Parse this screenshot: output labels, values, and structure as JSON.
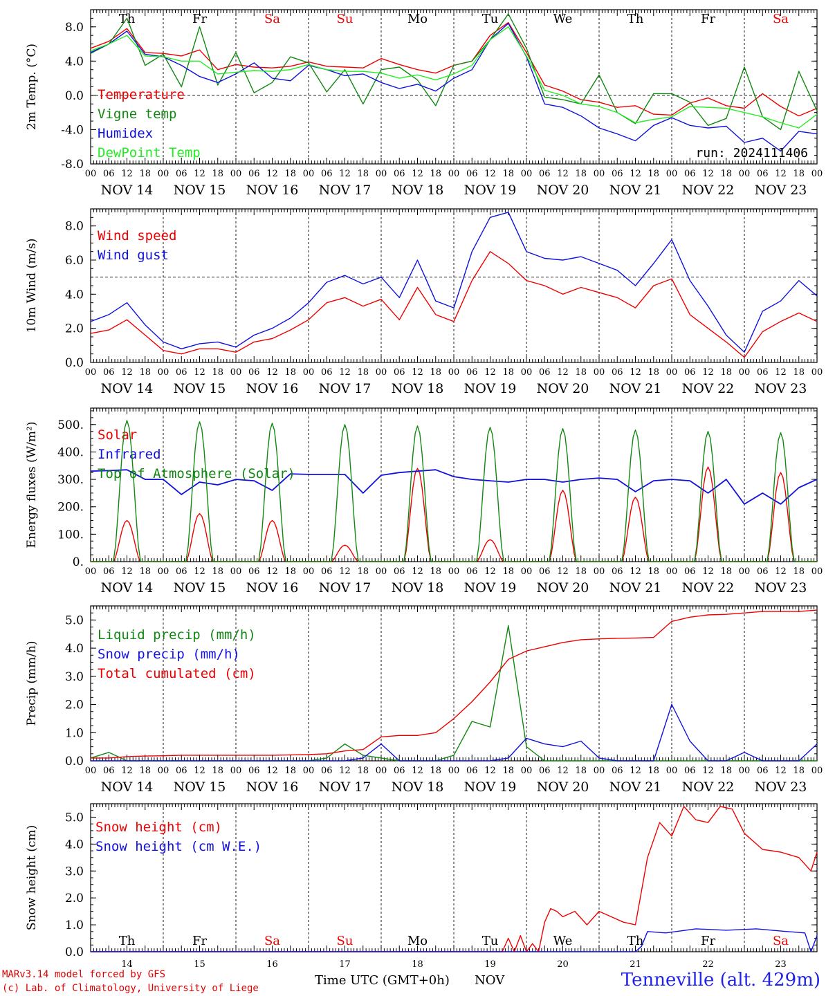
{
  "run_label": "run: 2024111406",
  "days": [
    {
      "weekday": "Th",
      "weekend": false,
      "date": "NOV 14",
      "num": "14"
    },
    {
      "weekday": "Fr",
      "weekend": false,
      "date": "NOV 15",
      "num": "15"
    },
    {
      "weekday": "Sa",
      "weekend": true,
      "date": "NOV 16",
      "num": "16"
    },
    {
      "weekday": "Su",
      "weekend": true,
      "date": "NOV 17",
      "num": "17"
    },
    {
      "weekday": "Mo",
      "weekend": false,
      "date": "NOV 18",
      "num": "18"
    },
    {
      "weekday": "Tu",
      "weekend": false,
      "date": "NOV 19",
      "num": "19"
    },
    {
      "weekday": "We",
      "weekend": false,
      "date": "NOV 20",
      "num": "20"
    },
    {
      "weekday": "Th",
      "weekend": false,
      "date": "NOV 21",
      "num": "21"
    },
    {
      "weekday": "Fr",
      "weekend": false,
      "date": "NOV 22",
      "num": "22"
    },
    {
      "weekday": "Sa",
      "weekend": true,
      "date": "NOV 23",
      "num": "23"
    }
  ],
  "hour_ticks": [
    "00",
    "06",
    "12",
    "18"
  ],
  "footer": {
    "model_line": "MARv3.14 model forced by GFS",
    "lab_line": "(c) Lab. of Climatology, University of Liege",
    "station": "Tenneville (alt. 429m)",
    "time_axis_label": "Time UTC (GMT+0h)",
    "month_label": "NOV"
  },
  "colors": {
    "red": "#ee0000",
    "green": "#118811",
    "blue": "#1111dd",
    "lightgreen": "#22ee22",
    "weekend": "#ee0000"
  },
  "chart_data": [
    {
      "type": "line",
      "ylabel": "2m Temp. (°C)",
      "ylim": [
        -8,
        10
      ],
      "yticks": [
        8,
        4,
        0,
        -4,
        -8
      ],
      "ytick_labels": [
        "8.0",
        "4.0",
        "0.0",
        "-4.0",
        "-8.0"
      ],
      "reference_line": 0,
      "x_hours": [
        0,
        6,
        12,
        18,
        24,
        30,
        36,
        42,
        48,
        54,
        60,
        66,
        72,
        78,
        84,
        90,
        96,
        102,
        108,
        114,
        120,
        126,
        132,
        138,
        144,
        150,
        156,
        162,
        168,
        174,
        180,
        186,
        192,
        198,
        204,
        210,
        216,
        222,
        228,
        234,
        240
      ],
      "series": [
        {
          "name": "Temperature",
          "color": "red",
          "values": [
            5.5,
            6.3,
            7.8,
            5.0,
            4.9,
            4.6,
            5.3,
            3.0,
            3.6,
            3.3,
            3.2,
            3.4,
            3.9,
            3.4,
            3.3,
            3.2,
            4.3,
            3.6,
            3.0,
            2.6,
            3.5,
            4.0,
            7.0,
            8.5,
            5.0,
            1.2,
            0.5,
            -0.5,
            -0.8,
            -1.4,
            -1.2,
            -2.2,
            -2.3,
            -0.9,
            -0.3,
            -1.2,
            -1.5,
            0.2,
            -1.3,
            -2.4,
            -1.5
          ]
        },
        {
          "name": "Vigne temp",
          "color": "green",
          "values": [
            4.9,
            6.0,
            9.0,
            3.5,
            4.8,
            1.0,
            8.0,
            1.2,
            5.0,
            0.3,
            1.5,
            4.5,
            3.8,
            0.4,
            3.0,
            -1.0,
            3.0,
            3.3,
            1.8,
            -1.2,
            3.5,
            4.0,
            6.5,
            9.5,
            5.5,
            -0.2,
            -0.5,
            -1.0,
            2.4,
            -2.0,
            -3.3,
            0.2,
            0.2,
            -0.8,
            -3.5,
            -2.7,
            3.3,
            -2.5,
            -4.0,
            2.8,
            -1.8
          ]
        },
        {
          "name": "Humidex",
          "color": "blue",
          "values": [
            5.0,
            6.0,
            7.5,
            4.8,
            4.5,
            3.5,
            2.2,
            1.5,
            2.5,
            3.8,
            2.0,
            1.7,
            3.5,
            3.0,
            2.3,
            2.5,
            1.5,
            0.8,
            1.3,
            0.5,
            2.0,
            3.0,
            6.5,
            8.4,
            4.5,
            -1.0,
            -1.4,
            -2.4,
            -3.8,
            -4.5,
            -5.3,
            -3.5,
            -2.6,
            -3.5,
            -3.8,
            -3.6,
            -5.5,
            -5.0,
            -6.5,
            -4.2,
            -4.5
          ]
        },
        {
          "name": "DewPoint Temp",
          "color": "lightgreen",
          "values": [
            5.2,
            6.0,
            7.0,
            4.6,
            4.5,
            4.0,
            4.0,
            2.5,
            2.7,
            2.9,
            2.8,
            3.0,
            3.6,
            3.0,
            2.8,
            2.8,
            2.6,
            2.0,
            2.4,
            1.8,
            2.5,
            3.5,
            6.5,
            8.0,
            4.6,
            0.6,
            0.0,
            -1.0,
            -1.3,
            -2.0,
            -3.2,
            -2.8,
            -2.5,
            -1.3,
            -1.4,
            -1.5,
            -2.0,
            -2.5,
            -3.2,
            -3.8,
            -2.2
          ]
        }
      ]
    },
    {
      "type": "line",
      "ylabel": "10m Wind (m/s)",
      "ylim": [
        0,
        9
      ],
      "yticks": [
        8,
        6,
        4,
        2,
        0
      ],
      "ytick_labels": [
        "8.0",
        "6.0",
        "4.0",
        "2.0",
        "0.0"
      ],
      "reference_line": 5,
      "x_hours": [
        0,
        6,
        12,
        18,
        24,
        30,
        36,
        42,
        48,
        54,
        60,
        66,
        72,
        78,
        84,
        90,
        96,
        102,
        108,
        114,
        120,
        126,
        132,
        138,
        144,
        150,
        156,
        162,
        168,
        174,
        180,
        186,
        192,
        198,
        204,
        210,
        216,
        222,
        228,
        234,
        240
      ],
      "series": [
        {
          "name": "Wind speed",
          "color": "red",
          "values": [
            1.7,
            1.9,
            2.5,
            1.6,
            0.7,
            0.5,
            0.8,
            0.8,
            0.6,
            1.2,
            1.4,
            1.9,
            2.5,
            3.5,
            3.8,
            3.3,
            3.7,
            2.5,
            4.4,
            2.8,
            2.4,
            4.8,
            6.5,
            5.8,
            4.8,
            4.5,
            4.0,
            4.4,
            4.1,
            3.8,
            3.2,
            4.5,
            4.9,
            2.8,
            2.0,
            1.2,
            0.3,
            1.8,
            2.4,
            2.9,
            2.4
          ]
        },
        {
          "name": "Wind gust",
          "color": "blue",
          "values": [
            2.4,
            2.8,
            3.5,
            2.2,
            1.2,
            0.8,
            1.1,
            1.2,
            0.9,
            1.6,
            2.0,
            2.6,
            3.5,
            4.7,
            5.1,
            4.6,
            5.0,
            3.8,
            6.0,
            3.6,
            3.2,
            6.5,
            8.5,
            8.8,
            6.5,
            6.1,
            6.0,
            6.2,
            5.8,
            5.4,
            4.5,
            5.8,
            7.2,
            4.8,
            3.3,
            1.6,
            0.6,
            3.0,
            3.6,
            4.8,
            3.9
          ]
        }
      ]
    },
    {
      "type": "line",
      "ylabel": "Energy fluxes (W/m²)",
      "ylim": [
        0,
        560
      ],
      "yticks": [
        500,
        400,
        300,
        200,
        100,
        0
      ],
      "ytick_labels": [
        "500.",
        "400.",
        "300.",
        "200.",
        "100.",
        "0."
      ],
      "solar_noon_hour": 12,
      "solar_halfwidth_hours": 4.5,
      "series": [
        {
          "name": "Solar",
          "color": "red",
          "daily_peaks": [
            150,
            175,
            150,
            60,
            340,
            80,
            260,
            235,
            345,
            325
          ]
        },
        {
          "name": "Infrared",
          "color": "blue",
          "x_hours": [
            0,
            6,
            12,
            18,
            24,
            30,
            36,
            42,
            48,
            54,
            60,
            66,
            72,
            78,
            84,
            90,
            96,
            102,
            108,
            114,
            120,
            126,
            132,
            138,
            144,
            150,
            156,
            162,
            168,
            174,
            180,
            186,
            192,
            198,
            204,
            210,
            216,
            222,
            228,
            234,
            240
          ],
          "values": [
            330,
            332,
            335,
            300,
            300,
            245,
            290,
            280,
            300,
            295,
            260,
            320,
            318,
            318,
            318,
            250,
            315,
            325,
            330,
            335,
            310,
            300,
            295,
            290,
            300,
            300,
            290,
            300,
            305,
            300,
            255,
            295,
            300,
            295,
            250,
            300,
            210,
            250,
            210,
            270,
            300
          ]
        },
        {
          "name": "Top of Atmosphere (Solar)",
          "color": "green",
          "daily_peaks": [
            515,
            510,
            505,
            500,
            495,
            490,
            485,
            480,
            475,
            470
          ]
        }
      ]
    },
    {
      "type": "line",
      "ylabel": "Precip (mm/h)",
      "ylim": [
        0,
        5.5
      ],
      "yticks": [
        5,
        4,
        3,
        2,
        1,
        0
      ],
      "ytick_labels": [
        "5.0",
        "4.0",
        "3.0",
        "2.0",
        "1.0",
        "0.0"
      ],
      "x_hours": [
        0,
        6,
        12,
        18,
        24,
        30,
        36,
        42,
        48,
        54,
        60,
        66,
        72,
        78,
        84,
        90,
        96,
        102,
        108,
        114,
        120,
        126,
        132,
        138,
        144,
        150,
        156,
        162,
        168,
        174,
        180,
        186,
        192,
        198,
        204,
        210,
        216,
        222,
        228,
        234,
        240
      ],
      "series": [
        {
          "name": "Liquid precip (mm/h)",
          "color": "green",
          "values": [
            0.1,
            0.3,
            0.0,
            0.0,
            0.0,
            0.0,
            0.0,
            0.0,
            0.0,
            0.0,
            0.0,
            0.0,
            0.0,
            0.1,
            0.6,
            0.2,
            0.1,
            0.0,
            0.0,
            0.0,
            0.2,
            1.4,
            1.2,
            4.8,
            0.5,
            0.0,
            0.0,
            0.0,
            0.0,
            0.0,
            0.0,
            0.0,
            0.0,
            0.0,
            0.0,
            0.0,
            0.0,
            0.0,
            0.0,
            0.0,
            0.0
          ]
        },
        {
          "name": "Snow precip (mm/h)",
          "color": "blue",
          "values": [
            0.0,
            0.0,
            0.0,
            0.0,
            0.0,
            0.0,
            0.0,
            0.0,
            0.0,
            0.0,
            0.0,
            0.0,
            0.0,
            0.0,
            0.0,
            0.1,
            0.6,
            0.0,
            0.0,
            0.0,
            0.0,
            0.0,
            0.0,
            0.1,
            0.8,
            0.6,
            0.5,
            0.7,
            0.1,
            0.0,
            0.0,
            0.0,
            2.0,
            0.7,
            0.0,
            0.0,
            0.3,
            0.0,
            0.0,
            0.0,
            0.6
          ]
        },
        {
          "name": "Total cumulated (cm)",
          "color": "red",
          "values": [
            0.1,
            0.1,
            0.15,
            0.17,
            0.18,
            0.2,
            0.2,
            0.2,
            0.2,
            0.2,
            0.2,
            0.21,
            0.22,
            0.25,
            0.35,
            0.4,
            0.85,
            0.9,
            0.9,
            1.0,
            1.5,
            2.1,
            2.8,
            3.6,
            3.9,
            4.05,
            4.2,
            4.3,
            4.33,
            4.35,
            4.36,
            4.38,
            4.95,
            5.1,
            5.18,
            5.2,
            5.25,
            5.3,
            5.3,
            5.3,
            5.35
          ]
        }
      ]
    },
    {
      "type": "line",
      "ylabel": "Snow height (cm)",
      "ylim": [
        0,
        5.5
      ],
      "yticks": [
        5,
        4,
        3,
        2,
        1,
        0
      ],
      "ytick_labels": [
        "5.0",
        "4.0",
        "3.0",
        "2.0",
        "1.0",
        "0.0"
      ],
      "series": [
        {
          "name": "Snow height (cm)",
          "color": "red",
          "x_hours": [
            0,
            136,
            138,
            140,
            142,
            144,
            146,
            148,
            150,
            152,
            154,
            156,
            160,
            164,
            168,
            172,
            176,
            180,
            184,
            188,
            192,
            196,
            200,
            204,
            208,
            212,
            216,
            222,
            228,
            234,
            238,
            240
          ],
          "values": [
            0,
            0,
            0.5,
            0,
            0.6,
            0,
            0.3,
            0,
            1.1,
            1.6,
            1.5,
            1.3,
            1.5,
            1.0,
            1.5,
            1.3,
            1.1,
            1.0,
            3.5,
            4.8,
            4.3,
            5.4,
            4.9,
            4.8,
            5.4,
            5.3,
            4.4,
            3.8,
            3.7,
            3.5,
            3.0,
            3.7
          ]
        },
        {
          "name": "Snow height (cm W.E.)",
          "color": "blue",
          "x_hours": [
            0,
            174,
            176,
            178,
            180,
            182,
            184,
            190,
            200,
            210,
            220,
            230,
            236,
            238,
            240
          ],
          "values": [
            0,
            0,
            0,
            0,
            0,
            0.2,
            0.75,
            0.7,
            0.85,
            0.8,
            0.85,
            0.75,
            0.7,
            0,
            0.6
          ]
        }
      ]
    }
  ]
}
